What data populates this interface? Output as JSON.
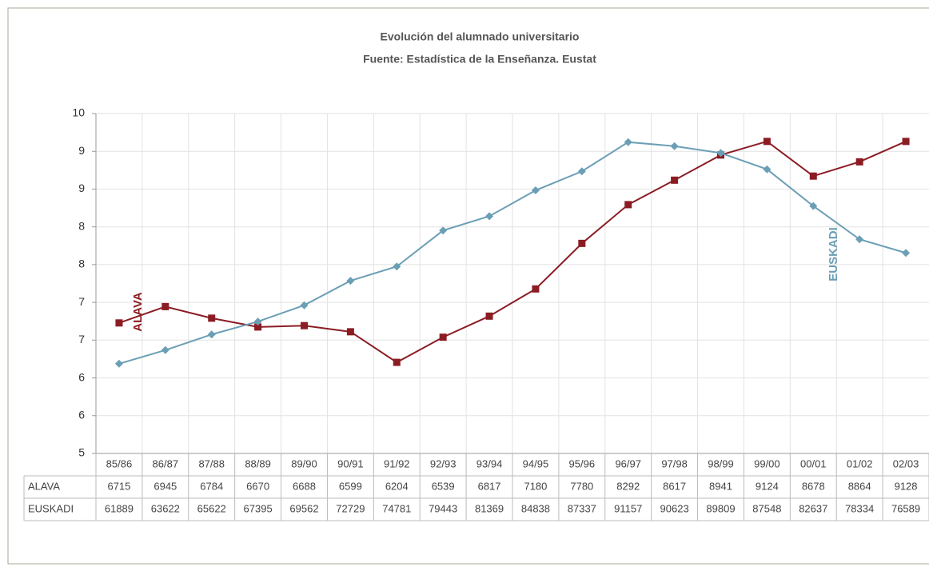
{
  "chart_data": {
    "type": "line",
    "title": "Evolución del alumnado universitario",
    "subtitle": "Fuente: Estadística de la Enseñanza. Eustat",
    "categories": [
      "85/86",
      "86/87",
      "87/88",
      "88/89",
      "89/90",
      "90/91",
      "91/92",
      "92/93",
      "93/94",
      "94/95",
      "95/96",
      "96/97",
      "97/98",
      "98/99",
      "99/00",
      "00/01",
      "01/02",
      "02/03"
    ],
    "series": [
      {
        "name": "ALAVA",
        "color": "#8b1c24",
        "marker": "square",
        "values": [
          6.92,
          7.16,
          6.99,
          6.86,
          6.88,
          6.79,
          6.34,
          6.71,
          7.02,
          7.42,
          8.09,
          8.66,
          9.02,
          9.39,
          9.59,
          9.08,
          9.29,
          9.59
        ],
        "table": [
          6715,
          6945,
          6784,
          6670,
          6688,
          6599,
          6204,
          6539,
          6817,
          7180,
          7780,
          8292,
          8617,
          8941,
          9124,
          8678,
          8864,
          9128
        ]
      },
      {
        "name": "EUSKADI",
        "color": "#6b9fb5",
        "marker": "diamond",
        "values": [
          6.32,
          6.52,
          6.75,
          6.94,
          7.18,
          7.54,
          7.75,
          8.28,
          8.49,
          8.87,
          9.15,
          9.58,
          9.52,
          9.42,
          9.18,
          8.64,
          8.15,
          7.95
        ],
        "table": [
          61889,
          63622,
          65622,
          67395,
          69562,
          72729,
          74781,
          79443,
          81369,
          84838,
          87337,
          91157,
          90623,
          89809,
          87548,
          82637,
          78334,
          76589
        ]
      }
    ],
    "ylim": [
      5,
      10
    ],
    "yticks": [
      5,
      {
        "value": 5.556,
        "label": "6"
      },
      {
        "value": 6.111,
        "label": "6"
      },
      {
        "value": 6.667,
        "label": "7"
      },
      {
        "value": 7.222,
        "label": "7"
      },
      {
        "value": 7.778,
        "label": "8"
      },
      {
        "value": 8.333,
        "label": "8"
      },
      {
        "value": 8.889,
        "label": "9"
      },
      {
        "value": 9.444,
        "label": "9"
      },
      10
    ],
    "grid": true
  }
}
